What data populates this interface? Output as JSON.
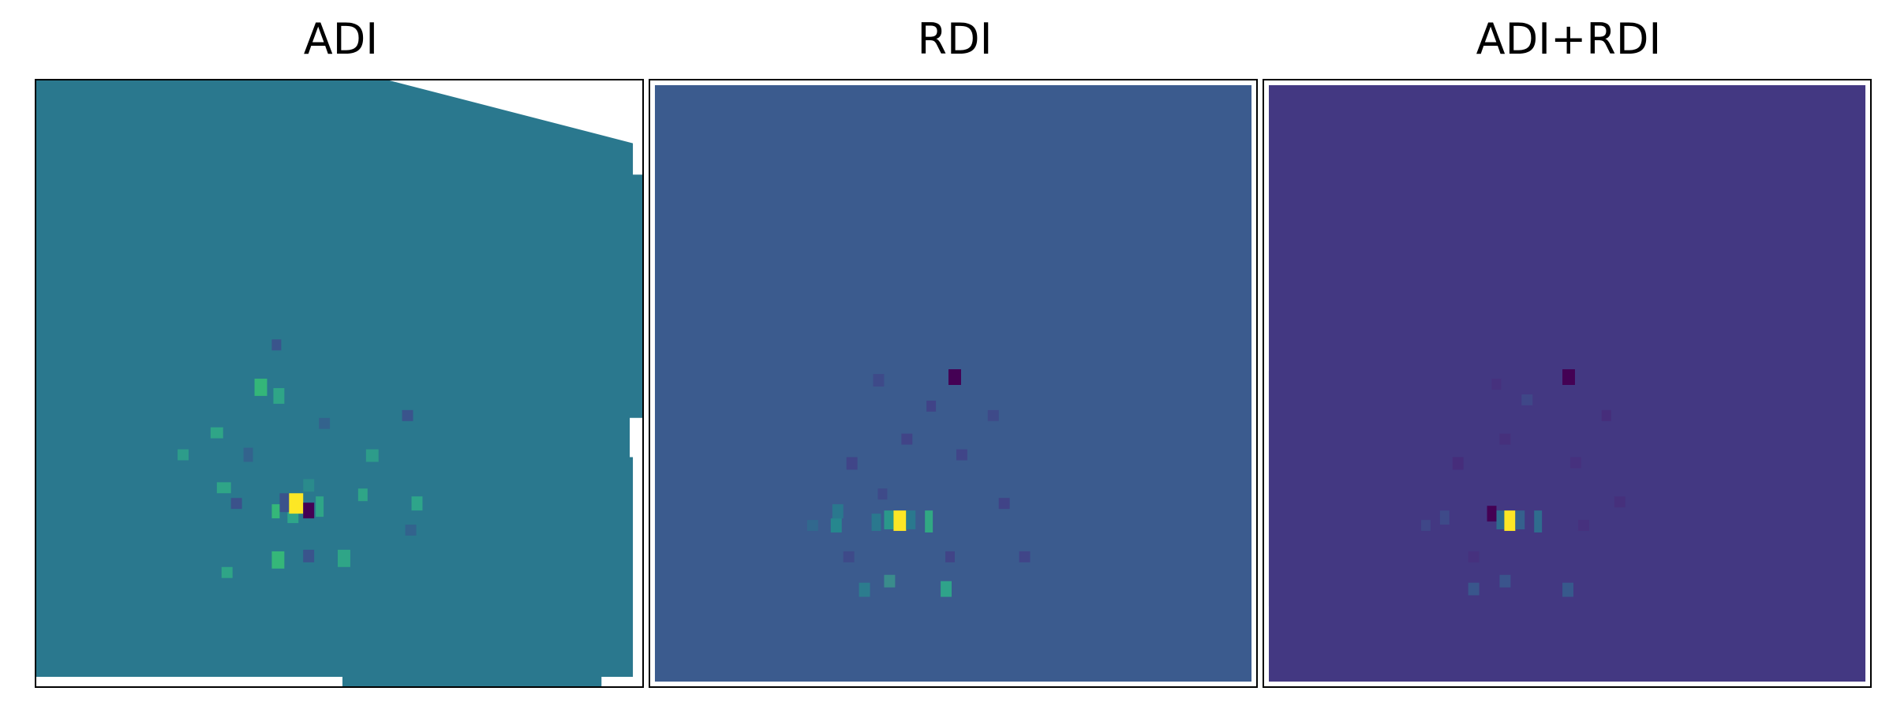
{
  "panels": [
    {
      "title": "ADI",
      "background_color": "#2a788e",
      "cmap": "viridis"
    },
    {
      "title": "RDI",
      "background_color": "#3b5b8e",
      "cmap": "viridis"
    },
    {
      "title": "ADI+RDI",
      "background_color": "#433882",
      "cmap": "viridis"
    }
  ]
}
